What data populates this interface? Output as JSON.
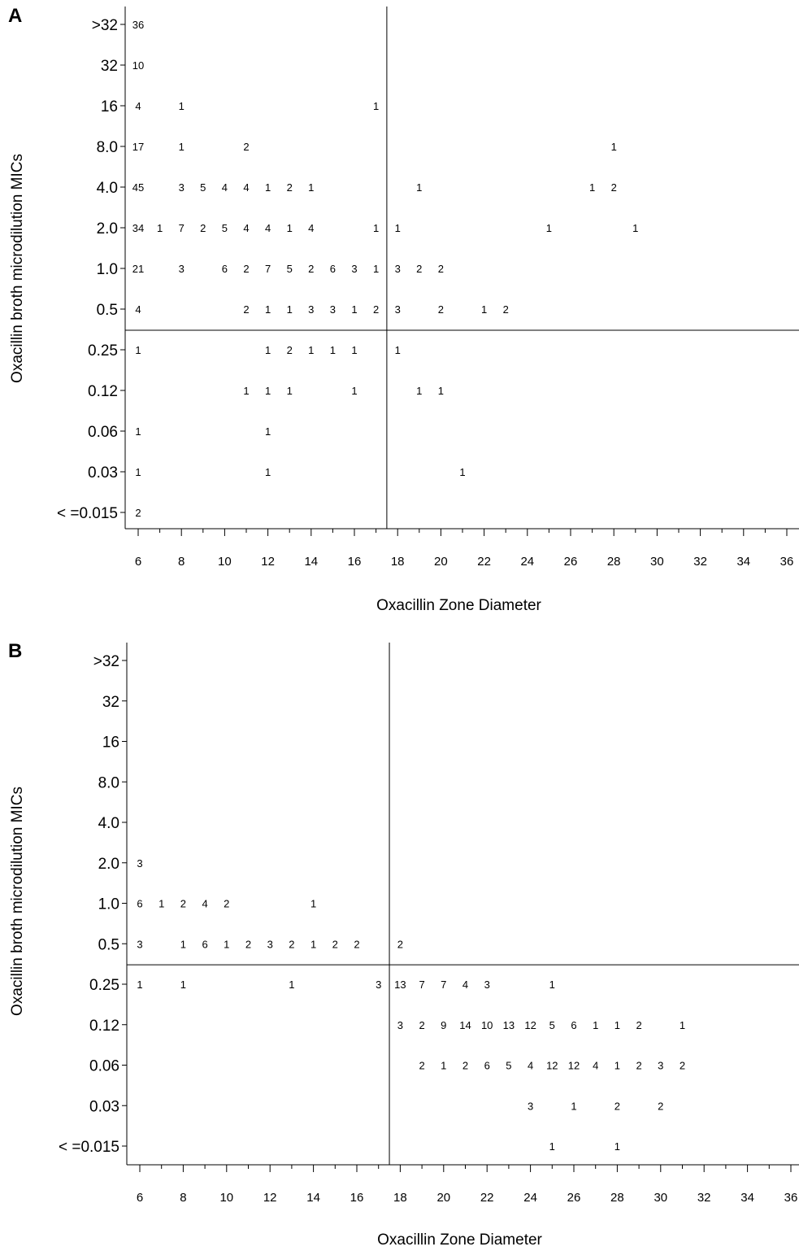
{
  "chart_data": [
    {
      "type": "table",
      "panel_label": "A",
      "xlabel": "Oxacillin Zone Diameter",
      "ylabel": "Oxacillin broth microdilution MICs",
      "x_ticks": [
        "6",
        "8",
        "10",
        "12",
        "14",
        "16",
        "18",
        "20",
        "22",
        "24",
        "26",
        "28",
        "30",
        "32",
        "34",
        "36"
      ],
      "xlim": [
        6,
        36
      ],
      "y_categories": [
        ">32",
        "32",
        "16",
        "8.0",
        "4.0",
        "2.0",
        "1.0",
        "0.5",
        "0.25",
        "0.12",
        "0.06",
        "0.03",
        "< =0.015"
      ],
      "breakpoints": {
        "x": 17.5,
        "y_between": [
          "0.5",
          "0.25"
        ]
      },
      "cells": [
        {
          "x": 6,
          "y": ">32",
          "count": "36"
        },
        {
          "x": 6,
          "y": "32",
          "count": "10"
        },
        {
          "x": 6,
          "y": "16",
          "count": "4"
        },
        {
          "x": 8,
          "y": "16",
          "count": "1"
        },
        {
          "x": 17,
          "y": "16",
          "count": "1"
        },
        {
          "x": 6,
          "y": "8.0",
          "count": "17"
        },
        {
          "x": 8,
          "y": "8.0",
          "count": "1"
        },
        {
          "x": 11,
          "y": "8.0",
          "count": "2"
        },
        {
          "x": 28,
          "y": "8.0",
          "count": "1"
        },
        {
          "x": 6,
          "y": "4.0",
          "count": "45"
        },
        {
          "x": 8,
          "y": "4.0",
          "count": "3"
        },
        {
          "x": 9,
          "y": "4.0",
          "count": "5"
        },
        {
          "x": 10,
          "y": "4.0",
          "count": "4"
        },
        {
          "x": 11,
          "y": "4.0",
          "count": "4"
        },
        {
          "x": 12,
          "y": "4.0",
          "count": "1"
        },
        {
          "x": 13,
          "y": "4.0",
          "count": "2"
        },
        {
          "x": 14,
          "y": "4.0",
          "count": "1"
        },
        {
          "x": 19,
          "y": "4.0",
          "count": "1"
        },
        {
          "x": 27,
          "y": "4.0",
          "count": "1"
        },
        {
          "x": 28,
          "y": "4.0",
          "count": "2"
        },
        {
          "x": 6,
          "y": "2.0",
          "count": "34"
        },
        {
          "x": 7,
          "y": "2.0",
          "count": "1"
        },
        {
          "x": 8,
          "y": "2.0",
          "count": "7"
        },
        {
          "x": 9,
          "y": "2.0",
          "count": "2"
        },
        {
          "x": 10,
          "y": "2.0",
          "count": "5"
        },
        {
          "x": 11,
          "y": "2.0",
          "count": "4"
        },
        {
          "x": 12,
          "y": "2.0",
          "count": "4"
        },
        {
          "x": 13,
          "y": "2.0",
          "count": "1"
        },
        {
          "x": 14,
          "y": "2.0",
          "count": "4"
        },
        {
          "x": 17,
          "y": "2.0",
          "count": "1"
        },
        {
          "x": 18,
          "y": "2.0",
          "count": "1"
        },
        {
          "x": 25,
          "y": "2.0",
          "count": "1"
        },
        {
          "x": 29,
          "y": "2.0",
          "count": "1"
        },
        {
          "x": 6,
          "y": "1.0",
          "count": "21"
        },
        {
          "x": 8,
          "y": "1.0",
          "count": "3"
        },
        {
          "x": 10,
          "y": "1.0",
          "count": "6"
        },
        {
          "x": 11,
          "y": "1.0",
          "count": "2"
        },
        {
          "x": 12,
          "y": "1.0",
          "count": "7"
        },
        {
          "x": 13,
          "y": "1.0",
          "count": "5"
        },
        {
          "x": 14,
          "y": "1.0",
          "count": "2"
        },
        {
          "x": 15,
          "y": "1.0",
          "count": "6"
        },
        {
          "x": 16,
          "y": "1.0",
          "count": "3"
        },
        {
          "x": 17,
          "y": "1.0",
          "count": "1"
        },
        {
          "x": 18,
          "y": "1.0",
          "count": "3"
        },
        {
          "x": 19,
          "y": "1.0",
          "count": "2"
        },
        {
          "x": 20,
          "y": "1.0",
          "count": "2"
        },
        {
          "x": 6,
          "y": "0.5",
          "count": "4"
        },
        {
          "x": 11,
          "y": "0.5",
          "count": "2"
        },
        {
          "x": 12,
          "y": "0.5",
          "count": "1"
        },
        {
          "x": 13,
          "y": "0.5",
          "count": "1"
        },
        {
          "x": 14,
          "y": "0.5",
          "count": "3"
        },
        {
          "x": 15,
          "y": "0.5",
          "count": "3"
        },
        {
          "x": 16,
          "y": "0.5",
          "count": "1"
        },
        {
          "x": 17,
          "y": "0.5",
          "count": "2"
        },
        {
          "x": 18,
          "y": "0.5",
          "count": "3"
        },
        {
          "x": 20,
          "y": "0.5",
          "count": "2"
        },
        {
          "x": 22,
          "y": "0.5",
          "count": "1"
        },
        {
          "x": 23,
          "y": "0.5",
          "count": "2"
        },
        {
          "x": 6,
          "y": "0.25",
          "count": "1"
        },
        {
          "x": 12,
          "y": "0.25",
          "count": "1"
        },
        {
          "x": 13,
          "y": "0.25",
          "count": "2"
        },
        {
          "x": 14,
          "y": "0.25",
          "count": "1"
        },
        {
          "x": 15,
          "y": "0.25",
          "count": "1"
        },
        {
          "x": 16,
          "y": "0.25",
          "count": "1"
        },
        {
          "x": 18,
          "y": "0.25",
          "count": "1"
        },
        {
          "x": 11,
          "y": "0.12",
          "count": "1"
        },
        {
          "x": 12,
          "y": "0.12",
          "count": "1"
        },
        {
          "x": 13,
          "y": "0.12",
          "count": "1"
        },
        {
          "x": 16,
          "y": "0.12",
          "count": "1"
        },
        {
          "x": 19,
          "y": "0.12",
          "count": "1"
        },
        {
          "x": 20,
          "y": "0.12",
          "count": "1"
        },
        {
          "x": 6,
          "y": "0.06",
          "count": "1"
        },
        {
          "x": 12,
          "y": "0.06",
          "count": "1"
        },
        {
          "x": 6,
          "y": "0.03",
          "count": "1"
        },
        {
          "x": 12,
          "y": "0.03",
          "count": "1"
        },
        {
          "x": 21,
          "y": "0.03",
          "count": "1"
        },
        {
          "x": 6,
          "y": "< =0.015",
          "count": "2"
        }
      ]
    },
    {
      "type": "table",
      "panel_label": "B",
      "xlabel": "Oxacillin Zone Diameter",
      "ylabel": "Oxacillin broth microdilution MICs",
      "x_ticks": [
        "6",
        "8",
        "10",
        "12",
        "14",
        "16",
        "18",
        "20",
        "22",
        "24",
        "26",
        "28",
        "30",
        "32",
        "34",
        "36"
      ],
      "xlim": [
        6,
        36
      ],
      "y_categories": [
        ">32",
        "32",
        "16",
        "8.0",
        "4.0",
        "2.0",
        "1.0",
        "0.5",
        "0.25",
        "0.12",
        "0.06",
        "0.03",
        "< =0.015"
      ],
      "breakpoints": {
        "x": 17.5,
        "y_between": [
          "0.5",
          "0.25"
        ]
      },
      "cells": [
        {
          "x": 6,
          "y": "2.0",
          "count": "3"
        },
        {
          "x": 6,
          "y": "1.0",
          "count": "6"
        },
        {
          "x": 7,
          "y": "1.0",
          "count": "1"
        },
        {
          "x": 8,
          "y": "1.0",
          "count": "2"
        },
        {
          "x": 9,
          "y": "1.0",
          "count": "4"
        },
        {
          "x": 10,
          "y": "1.0",
          "count": "2"
        },
        {
          "x": 14,
          "y": "1.0",
          "count": "1"
        },
        {
          "x": 6,
          "y": "0.5",
          "count": "3"
        },
        {
          "x": 8,
          "y": "0.5",
          "count": "1"
        },
        {
          "x": 9,
          "y": "0.5",
          "count": "6"
        },
        {
          "x": 10,
          "y": "0.5",
          "count": "1"
        },
        {
          "x": 11,
          "y": "0.5",
          "count": "2"
        },
        {
          "x": 12,
          "y": "0.5",
          "count": "3"
        },
        {
          "x": 13,
          "y": "0.5",
          "count": "2"
        },
        {
          "x": 14,
          "y": "0.5",
          "count": "1"
        },
        {
          "x": 15,
          "y": "0.5",
          "count": "2"
        },
        {
          "x": 16,
          "y": "0.5",
          "count": "2"
        },
        {
          "x": 18,
          "y": "0.5",
          "count": "2"
        },
        {
          "x": 6,
          "y": "0.25",
          "count": "1"
        },
        {
          "x": 8,
          "y": "0.25",
          "count": "1"
        },
        {
          "x": 13,
          "y": "0.25",
          "count": "1"
        },
        {
          "x": 17,
          "y": "0.25",
          "count": "3"
        },
        {
          "x": 18,
          "y": "0.25",
          "count": "13"
        },
        {
          "x": 19,
          "y": "0.25",
          "count": "7"
        },
        {
          "x": 20,
          "y": "0.25",
          "count": "7"
        },
        {
          "x": 21,
          "y": "0.25",
          "count": "4"
        },
        {
          "x": 22,
          "y": "0.25",
          "count": "3"
        },
        {
          "x": 25,
          "y": "0.25",
          "count": "1"
        },
        {
          "x": 18,
          "y": "0.12",
          "count": "3"
        },
        {
          "x": 19,
          "y": "0.12",
          "count": "2"
        },
        {
          "x": 20,
          "y": "0.12",
          "count": "9"
        },
        {
          "x": 21,
          "y": "0.12",
          "count": "14"
        },
        {
          "x": 22,
          "y": "0.12",
          "count": "10"
        },
        {
          "x": 23,
          "y": "0.12",
          "count": "13"
        },
        {
          "x": 24,
          "y": "0.12",
          "count": "12"
        },
        {
          "x": 25,
          "y": "0.12",
          "count": "5"
        },
        {
          "x": 26,
          "y": "0.12",
          "count": "6"
        },
        {
          "x": 27,
          "y": "0.12",
          "count": "1"
        },
        {
          "x": 28,
          "y": "0.12",
          "count": "1"
        },
        {
          "x": 29,
          "y": "0.12",
          "count": "2"
        },
        {
          "x": 31,
          "y": "0.12",
          "count": "1"
        },
        {
          "x": 19,
          "y": "0.06",
          "count": "2"
        },
        {
          "x": 20,
          "y": "0.06",
          "count": "1"
        },
        {
          "x": 21,
          "y": "0.06",
          "count": "2"
        },
        {
          "x": 22,
          "y": "0.06",
          "count": "6"
        },
        {
          "x": 23,
          "y": "0.06",
          "count": "5"
        },
        {
          "x": 24,
          "y": "0.06",
          "count": "4"
        },
        {
          "x": 25,
          "y": "0.06",
          "count": "12"
        },
        {
          "x": 26,
          "y": "0.06",
          "count": "12"
        },
        {
          "x": 27,
          "y": "0.06",
          "count": "4"
        },
        {
          "x": 28,
          "y": "0.06",
          "count": "1"
        },
        {
          "x": 29,
          "y": "0.06",
          "count": "2"
        },
        {
          "x": 30,
          "y": "0.06",
          "count": "3"
        },
        {
          "x": 31,
          "y": "0.06",
          "count": "2"
        },
        {
          "x": 24,
          "y": "0.03",
          "count": "3"
        },
        {
          "x": 26,
          "y": "0.03",
          "count": "1"
        },
        {
          "x": 28,
          "y": "0.03",
          "count": "2"
        },
        {
          "x": 30,
          "y": "0.03",
          "count": "2"
        },
        {
          "x": 25,
          "y": "< =0.015",
          "count": "1"
        },
        {
          "x": 28,
          "y": "< =0.015",
          "count": "1"
        }
      ]
    }
  ]
}
